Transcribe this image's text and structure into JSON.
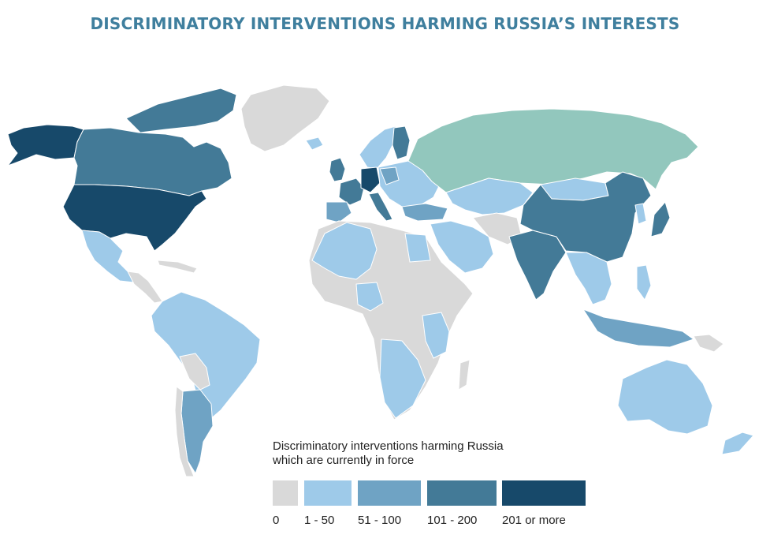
{
  "title": "DISCRIMINATORY INTERVENTIONS HARMING RUSSIA’S INTERESTS",
  "legend": {
    "title_line1": "Discriminatory interventions harming Russia",
    "title_line2": "which are currently in force",
    "bins": [
      {
        "label": "0",
        "color": "#d9d9d9"
      },
      {
        "label": "1 - 50",
        "color": "#9ecae9"
      },
      {
        "label": "51 - 100",
        "color": "#6fa3c4"
      },
      {
        "label": "101 - 200",
        "color": "#437a97"
      },
      {
        "label": "201 or more",
        "color": "#17496a"
      }
    ],
    "russia_color": "#92c7bd"
  }
}
